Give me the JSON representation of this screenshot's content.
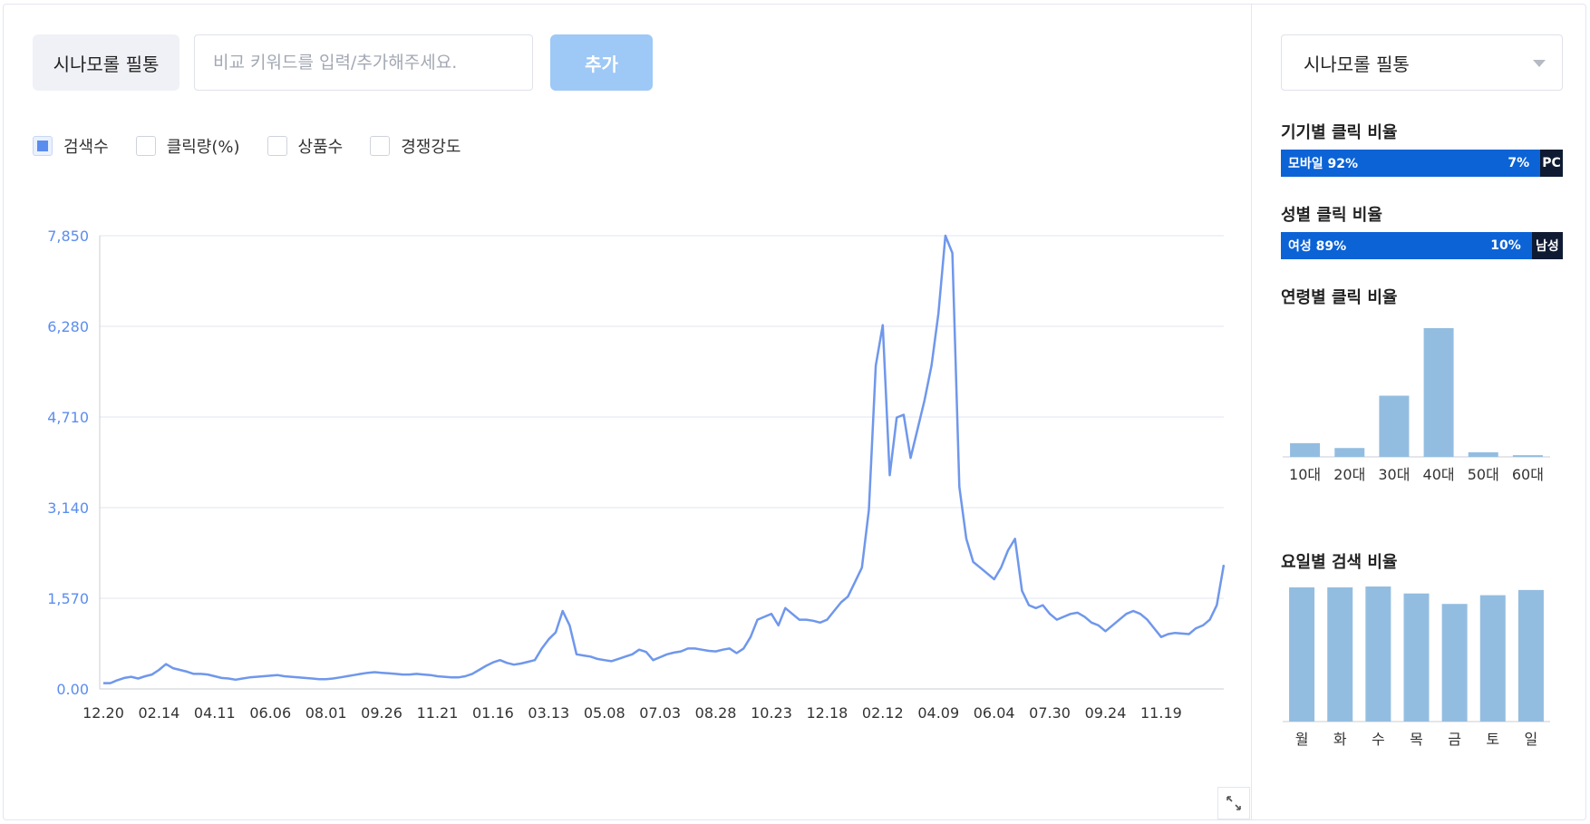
{
  "keyword": {
    "tag": "시나모롤 필통",
    "input_placeholder": "비교 키워드를 입력/추가해주세요.",
    "add_label": "추가"
  },
  "legend": [
    {
      "label": "검색수",
      "checked": true
    },
    {
      "label": "클릭량(%)",
      "checked": false
    },
    {
      "label": "상품수",
      "checked": false
    },
    {
      "label": "경쟁강도",
      "checked": false
    }
  ],
  "colors": {
    "line": "#6f97ec",
    "axis_text": "#5b8def",
    "device_bar": "#0b63d6",
    "dark_bar": "#0f1b33",
    "side_bar": "#93bde0",
    "button": "#9ec8f5"
  },
  "chart_data": {
    "type": "line",
    "series_name": "검색수",
    "y_ticks": [
      "7,850",
      "6,280",
      "4,710",
      "3,140",
      "1,570",
      "0.00"
    ],
    "ylim": [
      0,
      7850
    ],
    "x_tick_labels": [
      "12.20",
      "02.14",
      "04.11",
      "06.06",
      "08.01",
      "09.26",
      "11.21",
      "01.16",
      "03.13",
      "05.08",
      "07.03",
      "08.28",
      "10.23",
      "12.18",
      "02.12",
      "04.09",
      "06.04",
      "07.30",
      "09.24",
      "11.19"
    ],
    "x_count": 158,
    "x_tick_every": 8,
    "values": [
      100,
      100,
      150,
      190,
      210,
      180,
      220,
      250,
      330,
      430,
      360,
      330,
      300,
      260,
      260,
      250,
      220,
      190,
      180,
      160,
      180,
      200,
      210,
      220,
      230,
      240,
      220,
      210,
      200,
      190,
      180,
      170,
      170,
      180,
      200,
      220,
      240,
      260,
      280,
      290,
      280,
      270,
      260,
      250,
      250,
      260,
      250,
      240,
      220,
      210,
      200,
      200,
      220,
      260,
      330,
      400,
      460,
      500,
      450,
      420,
      440,
      470,
      500,
      700,
      860,
      980,
      1350,
      1100,
      600,
      580,
      560,
      520,
      500,
      480,
      520,
      560,
      600,
      680,
      640,
      500,
      550,
      600,
      630,
      650,
      700,
      700,
      680,
      660,
      650,
      680,
      700,
      620,
      700,
      900,
      1200,
      1250,
      1300,
      1100,
      1400,
      1300,
      1200,
      1200,
      1180,
      1150,
      1200,
      1350,
      1500,
      1600,
      1850,
      2100,
      3100,
      5600,
      6300,
      3700,
      4700,
      4750,
      4000,
      4500,
      5000,
      5600,
      6500,
      7850,
      7550,
      3500,
      2600,
      2200,
      2100,
      2000,
      1900,
      2100,
      2400,
      2600,
      1700,
      1450,
      1400,
      1450,
      1300,
      1200,
      1250,
      1300,
      1320,
      1250,
      1150,
      1100,
      1000,
      1100,
      1200,
      1300,
      1350,
      1300,
      1200,
      1050,
      900,
      950,
      970,
      960,
      950,
      1050,
      1100,
      1200,
      1450,
      2150
    ],
    "age": {
      "title": "연령별 클릭 비율",
      "categories": [
        "10대",
        "20대",
        "30대",
        "40대",
        "50대",
        "60대"
      ],
      "values": [
        6.5,
        4.2,
        29,
        61,
        2.2,
        0.8
      ]
    },
    "day": {
      "title": "요일별 검색 비율",
      "categories": [
        "월",
        "화",
        "수",
        "목",
        "금",
        "토",
        "일"
      ],
      "values": [
        15.4,
        15.4,
        15.5,
        14.7,
        13.5,
        14.5,
        15.1
      ]
    }
  },
  "side": {
    "keyword_select": "시나모롤 필통",
    "device": {
      "title": "기기별 클릭 비율",
      "main_label": "모바일 92%",
      "minor_pct": "7%",
      "minor_name": "PC",
      "main_share": 92
    },
    "gender": {
      "title": "성별 클릭 비율",
      "main_label": "여성 89%",
      "minor_pct": "10%",
      "minor_name": "남성",
      "main_share": 89
    }
  }
}
